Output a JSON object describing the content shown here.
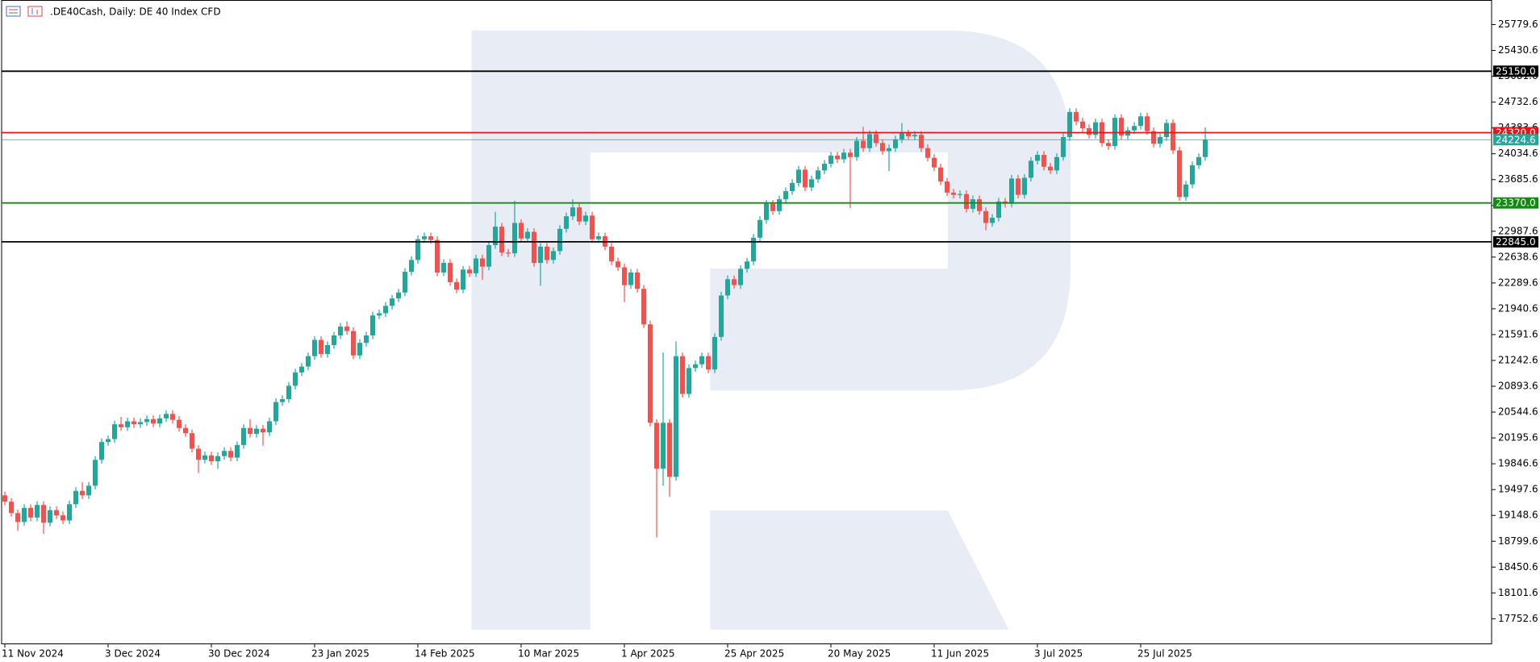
{
  "chart_data": {
    "type": "candlestick",
    "title": ".DE40Cash, Daily:  DE 40 Index CFD",
    "up_color": "#26a69a",
    "down_color": "#ef5350",
    "ylim": [
      17408,
      26112
    ],
    "yticks": [
      17752.6,
      18101.6,
      18450.6,
      18799.6,
      19148.6,
      19497.6,
      19846.6,
      20195.6,
      20544.6,
      20893.6,
      21242.6,
      21591.6,
      21940.6,
      22289.6,
      22638.6,
      22987.6,
      23336.6,
      23685.6,
      24034.6,
      24383.6,
      24732.6,
      25081.6,
      25430.6,
      25779.6
    ],
    "hlines": [
      {
        "value": 25150,
        "label": "25150.0",
        "color": "#000000"
      },
      {
        "value": 24320,
        "label": "24320.0",
        "color": "#e8121b"
      },
      {
        "value": 24224.6,
        "color": "#26a69a"
      },
      {
        "value": 23370,
        "label": "23370.0",
        "color": "#138b13"
      },
      {
        "value": 22845,
        "label": "22845.0",
        "color": "#000000"
      }
    ],
    "categories": [
      "11 Nov 2024",
      null,
      null,
      null,
      null,
      null,
      null,
      null,
      null,
      null,
      null,
      null,
      null,
      null,
      null,
      null,
      "3 Dec 2024",
      null,
      null,
      null,
      null,
      null,
      null,
      null,
      null,
      null,
      null,
      null,
      null,
      null,
      null,
      null,
      "30 Dec 2024",
      null,
      null,
      null,
      null,
      null,
      null,
      null,
      null,
      null,
      null,
      null,
      null,
      null,
      null,
      null,
      "23 Jan 2025",
      null,
      null,
      null,
      null,
      null,
      null,
      null,
      null,
      null,
      null,
      null,
      null,
      null,
      null,
      null,
      "14 Feb 2025",
      null,
      null,
      null,
      null,
      null,
      null,
      null,
      null,
      null,
      null,
      null,
      null,
      null,
      null,
      null,
      "10 Mar 2025",
      null,
      null,
      null,
      null,
      null,
      null,
      null,
      null,
      null,
      null,
      null,
      null,
      null,
      null,
      null,
      "1 Apr 2025",
      null,
      null,
      null,
      null,
      null,
      null,
      null,
      null,
      null,
      null,
      null,
      null,
      null,
      null,
      null,
      "25 Apr 2025",
      null,
      null,
      null,
      null,
      null,
      null,
      null,
      null,
      null,
      null,
      null,
      null,
      null,
      null,
      null,
      "20 May 2025",
      null,
      null,
      null,
      null,
      null,
      null,
      null,
      null,
      null,
      null,
      null,
      null,
      null,
      null,
      null,
      "11 Jun 2025",
      null,
      null,
      null,
      null,
      null,
      null,
      null,
      null,
      null,
      null,
      null,
      null,
      null,
      null,
      null,
      "3 Jul 2025",
      null,
      null,
      null,
      null,
      null,
      null,
      null,
      null,
      null,
      null,
      null,
      null,
      null,
      null,
      null,
      "25 Jul 2025",
      null,
      null,
      null,
      null,
      null,
      null,
      null,
      null,
      null,
      null
    ],
    "open": [
      19420,
      19335,
      19180,
      19060,
      19250,
      19120,
      19290,
      19050,
      19220,
      19150,
      19080,
      19300,
      19480,
      19420,
      19550,
      19900,
      20140,
      20180,
      20380,
      20340,
      20420,
      20380,
      20410,
      20450,
      20390,
      20460,
      20520,
      20440,
      20330,
      20260,
      20050,
      19900,
      19960,
      19880,
      19950,
      20020,
      19930,
      20100,
      20330,
      20250,
      20320,
      20270,
      20420,
      20680,
      20720,
      20900,
      21080,
      21160,
      21300,
      21520,
      21330,
      21450,
      21580,
      21700,
      21640,
      21310,
      21480,
      21580,
      21850,
      21880,
      21980,
      22080,
      22160,
      22440,
      22600,
      22880,
      22920,
      22870,
      22430,
      22560,
      22300,
      22200,
      22470,
      22420,
      22620,
      22510,
      22800,
      23050,
      22700,
      22690,
      23100,
      22890,
      22980,
      22560,
      22780,
      22600,
      22720,
      23020,
      23190,
      23310,
      23120,
      23200,
      22880,
      22920,
      22780,
      22580,
      22500,
      22260,
      22430,
      22210,
      21730,
      20400,
      19780,
      20400,
      19670,
      21300,
      20790,
      21140,
      21190,
      21300,
      21120,
      21560,
      22120,
      22340,
      22260,
      22480,
      22580,
      22900,
      23140,
      23360,
      23260,
      23420,
      23530,
      23640,
      23820,
      23580,
      23690,
      23810,
      23900,
      24010,
      23960,
      24050,
      23990,
      24210,
      24110,
      24300,
      24180,
      24070,
      24110,
      24230,
      24310,
      24270,
      24290,
      24110,
      23980,
      23850,
      23660,
      23510,
      23480,
      23490,
      23290,
      23420,
      23260,
      23100,
      23170,
      23390,
      23360,
      23700,
      23480,
      23710,
      23940,
      24020,
      23860,
      23810,
      23990,
      24260,
      24600,
      24470,
      24380,
      24290,
      24460,
      24180,
      24140,
      24520,
      24280,
      24350,
      24410,
      24540,
      24340,
      24170,
      24260,
      24450,
      24080,
      23450,
      23620,
      23880,
      23990
    ],
    "high": [
      19470,
      19385,
      19230,
      19300,
      19300,
      19340,
      19340,
      19270,
      19270,
      19200,
      19350,
      19530,
      19600,
      19600,
      19950,
      20190,
      20230,
      20430,
      20480,
      20470,
      20470,
      20460,
      20500,
      20500,
      20510,
      20570,
      20570,
      20490,
      20380,
      20310,
      20100,
      20010,
      20010,
      20000,
      20070,
      20070,
      20150,
      20380,
      20450,
      20370,
      20370,
      20470,
      20730,
      20770,
      20950,
      21130,
      21210,
      21350,
      21570,
      21570,
      21500,
      21630,
      21750,
      21770,
      21690,
      21530,
      21630,
      21900,
      21930,
      22030,
      22130,
      22210,
      22490,
      22650,
      22930,
      22970,
      22970,
      22920,
      22610,
      22610,
      22350,
      22520,
      22520,
      22670,
      22670,
      22850,
      23250,
      23100,
      22750,
      23400,
      23150,
      23030,
      23030,
      22830,
      22830,
      22770,
      23070,
      23240,
      23420,
      23360,
      23250,
      23250,
      22970,
      22970,
      22830,
      22630,
      22550,
      22480,
      22480,
      22260,
      21780,
      20450,
      21350,
      20450,
      21500,
      21350,
      21190,
      21240,
      21350,
      21350,
      21610,
      22170,
      22390,
      22390,
      22530,
      22630,
      22950,
      23190,
      23410,
      23410,
      23470,
      23580,
      23690,
      23870,
      23870,
      23740,
      23860,
      23950,
      24060,
      24060,
      24100,
      24100,
      24260,
      24400,
      24350,
      24350,
      24230,
      24160,
      24280,
      24450,
      24360,
      24340,
      24340,
      24160,
      24030,
      23900,
      23710,
      23560,
      23540,
      23540,
      23470,
      23470,
      23310,
      23220,
      23440,
      23440,
      23750,
      23750,
      23760,
      23990,
      24070,
      24070,
      23910,
      24040,
      24310,
      24650,
      24650,
      24520,
      24430,
      24510,
      24510,
      24230,
      24570,
      24570,
      24400,
      24460,
      24590,
      24590,
      24390,
      24310,
      24500,
      24500,
      24130,
      23670,
      23930,
      24040,
      24390
    ],
    "low": [
      19285,
      19130,
      18940,
      19010,
      19070,
      19070,
      18900,
      19000,
      19100,
      19030,
      19030,
      19250,
      19370,
      19370,
      19500,
      19850,
      20090,
      20130,
      20290,
      20290,
      20330,
      20330,
      20360,
      20340,
      20340,
      20410,
      20390,
      20280,
      20210,
      20000,
      19720,
      19850,
      19830,
      19780,
      19900,
      19880,
      19880,
      20050,
      20200,
      20200,
      20090,
      20220,
      20370,
      20630,
      20670,
      20850,
      21030,
      21110,
      21250,
      21280,
      21280,
      21400,
      21530,
      21590,
      21260,
      21260,
      21430,
      21530,
      21800,
      21830,
      21930,
      22030,
      22110,
      22390,
      22550,
      22830,
      22820,
      22380,
      22380,
      22250,
      22150,
      22150,
      22370,
      22370,
      22330,
      22460,
      22750,
      22650,
      22640,
      22640,
      22840,
      22840,
      22510,
      22250,
      22550,
      22550,
      22670,
      22970,
      23140,
      23070,
      23070,
      22830,
      22830,
      22730,
      22530,
      22450,
      22030,
      22210,
      22160,
      21680,
      20350,
      18850,
      19550,
      19400,
      19620,
      20740,
      20740,
      21090,
      21140,
      21070,
      21070,
      21510,
      22070,
      22210,
      22210,
      22430,
      22530,
      22850,
      23090,
      23210,
      23210,
      23370,
      23480,
      23590,
      23530,
      23530,
      23640,
      23760,
      23850,
      23910,
      23910,
      23300,
      23940,
      24060,
      24060,
      24130,
      24020,
      23800,
      24060,
      24180,
      24220,
      24220,
      24060,
      23930,
      23800,
      23610,
      23460,
      23430,
      23430,
      23240,
      23240,
      23210,
      23000,
      23050,
      23120,
      23310,
      23310,
      23430,
      23430,
      23660,
      23890,
      23810,
      23760,
      23760,
      23940,
      24210,
      24420,
      24330,
      24240,
      24240,
      24130,
      24090,
      24090,
      24230,
      24230,
      24300,
      24360,
      24290,
      24120,
      24120,
      24210,
      24030,
      23400,
      23400,
      23570,
      23830,
      23940
    ],
    "close": [
      19335,
      19180,
      19060,
      19250,
      19120,
      19290,
      19050,
      19220,
      19150,
      19080,
      19300,
      19480,
      19420,
      19550,
      19900,
      20140,
      20180,
      20380,
      20340,
      20420,
      20380,
      20410,
      20450,
      20390,
      20460,
      20520,
      20440,
      20330,
      20260,
      20050,
      19900,
      19960,
      19880,
      19950,
      20020,
      19930,
      20100,
      20330,
      20250,
      20320,
      20270,
      20420,
      20680,
      20720,
      20900,
      21080,
      21160,
      21300,
      21520,
      21330,
      21450,
      21580,
      21700,
      21640,
      21310,
      21480,
      21580,
      21850,
      21880,
      21980,
      22080,
      22160,
      22440,
      22600,
      22880,
      22920,
      22870,
      22430,
      22560,
      22300,
      22200,
      22470,
      22420,
      22620,
      22510,
      22800,
      23050,
      22700,
      22690,
      23100,
      22890,
      22980,
      22560,
      22780,
      22600,
      22720,
      23020,
      23190,
      23310,
      23120,
      23200,
      22880,
      22920,
      22780,
      22580,
      22500,
      22260,
      22430,
      22210,
      21730,
      20400,
      19780,
      20400,
      19670,
      21300,
      20790,
      21140,
      21190,
      21300,
      21120,
      21560,
      22120,
      22340,
      22260,
      22480,
      22580,
      22900,
      23140,
      23360,
      23260,
      23420,
      23530,
      23640,
      23820,
      23580,
      23690,
      23810,
      23900,
      24010,
      23960,
      24050,
      23990,
      24210,
      24110,
      24300,
      24180,
      24070,
      24110,
      24230,
      24310,
      24270,
      24290,
      24110,
      23980,
      23850,
      23660,
      23510,
      23480,
      23490,
      23290,
      23420,
      23260,
      23100,
      23170,
      23390,
      23360,
      23700,
      23480,
      23710,
      23940,
      24020,
      23860,
      23810,
      23990,
      24260,
      24600,
      24470,
      24380,
      24290,
      24460,
      24180,
      24140,
      24520,
      24280,
      24350,
      24410,
      24540,
      24340,
      24170,
      24260,
      24450,
      24080,
      23450,
      23620,
      23880,
      23990,
      24224.6
    ]
  }
}
